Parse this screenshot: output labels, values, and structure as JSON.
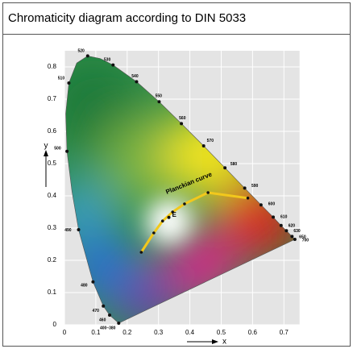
{
  "chart_data": {
    "type": "chromaticity",
    "title": "Chromaticity diagram according to DIN 5033",
    "xlabel": "x",
    "ylabel": "y",
    "xlim": [
      0,
      0.75
    ],
    "ylim": [
      0,
      0.85
    ],
    "xticks": [
      0,
      0.1,
      0.2,
      0.3,
      0.4,
      0.5,
      0.6,
      0.7
    ],
    "yticks": [
      0,
      0.1,
      0.2,
      0.3,
      0.4,
      0.5,
      0.6,
      0.7,
      0.8
    ],
    "grid": true,
    "locus": {
      "x": [
        0.173,
        0.144,
        0.124,
        0.091,
        0.045,
        0.024,
        0.008,
        0.004,
        0.014,
        0.039,
        0.074,
        0.114,
        0.155,
        0.23,
        0.302,
        0.373,
        0.444,
        0.512,
        0.575,
        0.627,
        0.666,
        0.691,
        0.708,
        0.726,
        0.735
      ],
      "y": [
        0.005,
        0.03,
        0.058,
        0.133,
        0.295,
        0.413,
        0.538,
        0.655,
        0.75,
        0.812,
        0.834,
        0.826,
        0.806,
        0.754,
        0.692,
        0.624,
        0.555,
        0.487,
        0.424,
        0.372,
        0.334,
        0.308,
        0.292,
        0.274,
        0.265
      ],
      "labels": [
        "400–380",
        "460",
        "470",
        "480",
        "490",
        null,
        "500",
        null,
        "510",
        null,
        "520",
        null,
        "530",
        "540",
        "550",
        "560",
        "570",
        "580",
        "590",
        "600",
        "610",
        "620",
        "630",
        "650",
        "700"
      ]
    },
    "planckian": {
      "label": "Planckian curve",
      "x": [
        0.245,
        0.285,
        0.313,
        0.345,
        0.383,
        0.458,
        0.585
      ],
      "y": [
        0.225,
        0.285,
        0.322,
        0.35,
        0.375,
        0.41,
        0.393
      ]
    },
    "points": [
      {
        "label": "E",
        "x": 0.333,
        "y": 0.333
      }
    ]
  }
}
